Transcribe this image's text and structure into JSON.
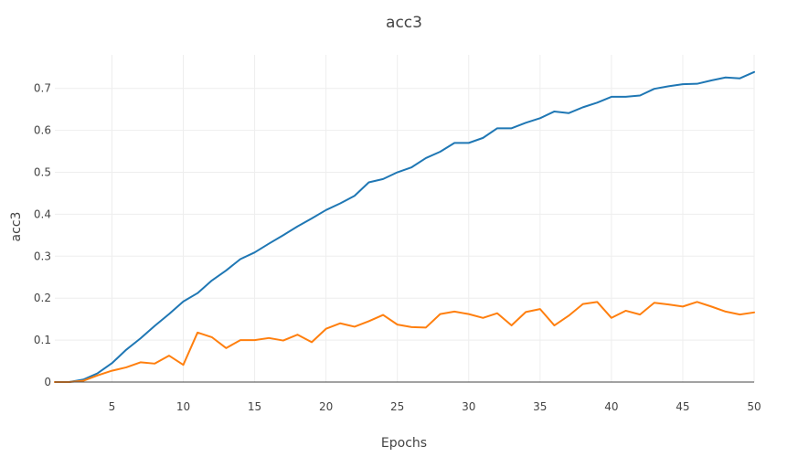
{
  "chart_data": {
    "type": "line",
    "title": "acc3",
    "xlabel": "Epochs",
    "ylabel": "acc3",
    "xlim": [
      1,
      50
    ],
    "ylim": [
      0,
      0.78
    ],
    "grid": true,
    "legend": "none",
    "x_ticks": [
      5,
      10,
      15,
      20,
      25,
      30,
      35,
      40,
      45,
      50
    ],
    "y_ticks": [
      0,
      0.1,
      0.2,
      0.3,
      0.4,
      0.5,
      0.6,
      0.7
    ],
    "y_tick_labels": [
      "0",
      "0.1",
      "0.2",
      "0.3",
      "0.4",
      "0.5",
      "0.6",
      "0.7"
    ],
    "x": [
      1,
      2,
      3,
      4,
      5,
      6,
      7,
      8,
      9,
      10,
      11,
      12,
      13,
      14,
      15,
      16,
      17,
      18,
      19,
      20,
      21,
      22,
      23,
      24,
      25,
      26,
      27,
      28,
      29,
      30,
      31,
      32,
      33,
      34,
      35,
      36,
      37,
      38,
      39,
      40,
      41,
      42,
      43,
      44,
      45,
      46,
      47,
      48,
      49,
      50
    ],
    "series": [
      {
        "color": "#1f77b4",
        "values": [
          0.0,
          0.0,
          0.006,
          0.021,
          0.045,
          0.077,
          0.104,
          0.134,
          0.162,
          0.192,
          0.212,
          0.242,
          0.266,
          0.293,
          0.309,
          0.33,
          0.35,
          0.371,
          0.39,
          0.41,
          0.426,
          0.444,
          0.476,
          0.484,
          0.5,
          0.512,
          0.534,
          0.549,
          0.57,
          0.57,
          0.582,
          0.605,
          0.605,
          0.618,
          0.629,
          0.645,
          0.641,
          0.655,
          0.666,
          0.68,
          0.68,
          0.683,
          0.699,
          0.705,
          0.71,
          0.711,
          0.719,
          0.726,
          0.724,
          0.739
        ]
      },
      {
        "color": "#ff7f0e",
        "values": [
          0.0,
          0.0,
          0.003,
          0.016,
          0.027,
          0.035,
          0.047,
          0.044,
          0.063,
          0.041,
          0.118,
          0.107,
          0.081,
          0.1,
          0.1,
          0.105,
          0.099,
          0.113,
          0.095,
          0.127,
          0.14,
          0.132,
          0.145,
          0.16,
          0.137,
          0.131,
          0.13,
          0.162,
          0.168,
          0.162,
          0.153,
          0.164,
          0.135,
          0.167,
          0.174,
          0.135,
          0.158,
          0.186,
          0.191,
          0.153,
          0.17,
          0.161,
          0.189,
          0.185,
          0.18,
          0.191,
          0.18,
          0.168,
          0.161,
          0.166
        ]
      }
    ]
  }
}
